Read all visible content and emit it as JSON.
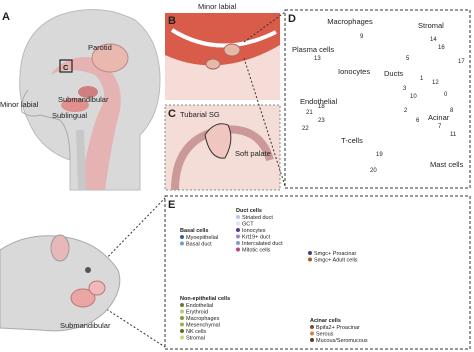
{
  "panel_a": {
    "letter": "A",
    "labels": [
      "Parotid",
      "C",
      "Minor labial",
      "Submandibular",
      "Sublingual"
    ]
  },
  "panel_b": {
    "letter": "B",
    "title": "Minor labial"
  },
  "panel_c": {
    "letter": "C",
    "title": "Tubarial SG",
    "label": "Soft palate"
  },
  "panel_d": {
    "letter": "D",
    "clusters": [
      "Macrophages",
      "Stromal",
      "Plasma cells",
      "Ionocytes",
      "Ducts",
      "Acinar",
      "Endothelial",
      "T-cells",
      "Mast cells"
    ],
    "cluster_numbers": [
      "14",
      "16",
      "13",
      "9",
      "17",
      "5",
      "3",
      "1",
      "12",
      "0",
      "2",
      "6",
      "7",
      "8",
      "10",
      "21",
      "23",
      "22",
      "19",
      "20",
      "18",
      "11"
    ]
  },
  "panel_e": {
    "letter": "E",
    "label": "Submandibular",
    "legend_groups": [
      {
        "title": "Basal cells",
        "items": [
          {
            "name": "Myoepithelial",
            "color": "#3a5f8f"
          },
          {
            "name": "Basal duct",
            "color": "#6aa0c8"
          }
        ]
      },
      {
        "title": "Duct cells",
        "items": [
          {
            "name": "Striated duct",
            "color": "#b7c8e6"
          },
          {
            "name": "GCT",
            "color": "#e2e2f0"
          },
          {
            "name": "Ionocytes",
            "color": "#5a3d8a"
          },
          {
            "name": "Krt19+ duct",
            "color": "#9b8cc4"
          },
          {
            "name": "Intercalated duct",
            "color": "#7d9fd4"
          },
          {
            "name": "Mitotic cells",
            "color": "#c04080"
          }
        ]
      },
      {
        "title": "",
        "items": [
          {
            "name": "Smgc+ Proacinar",
            "color": "#4b3a78"
          },
          {
            "name": "Smgc+ Adult cells",
            "color": "#b05a2a"
          }
        ]
      },
      {
        "title": "Non-epithelial cells",
        "items": [
          {
            "name": "Endothelial",
            "color": "#6b7a2e"
          },
          {
            "name": "Erythroid",
            "color": "#c9c46a"
          },
          {
            "name": "Macrophages",
            "color": "#8a9a3a"
          },
          {
            "name": "Mesenchymal",
            "color": "#a3b04a"
          },
          {
            "name": "NK cells",
            "color": "#5e6e20"
          },
          {
            "name": "Stromal",
            "color": "#d2d080"
          }
        ]
      },
      {
        "title": "Acinar cells",
        "items": [
          {
            "name": "Bpifa2+ Proacinar",
            "color": "#8a4a1e"
          },
          {
            "name": "Serous",
            "color": "#c88a4a"
          },
          {
            "name": "Mucous/Seromucous",
            "color": "#6a3a18"
          }
        ]
      }
    ]
  }
}
